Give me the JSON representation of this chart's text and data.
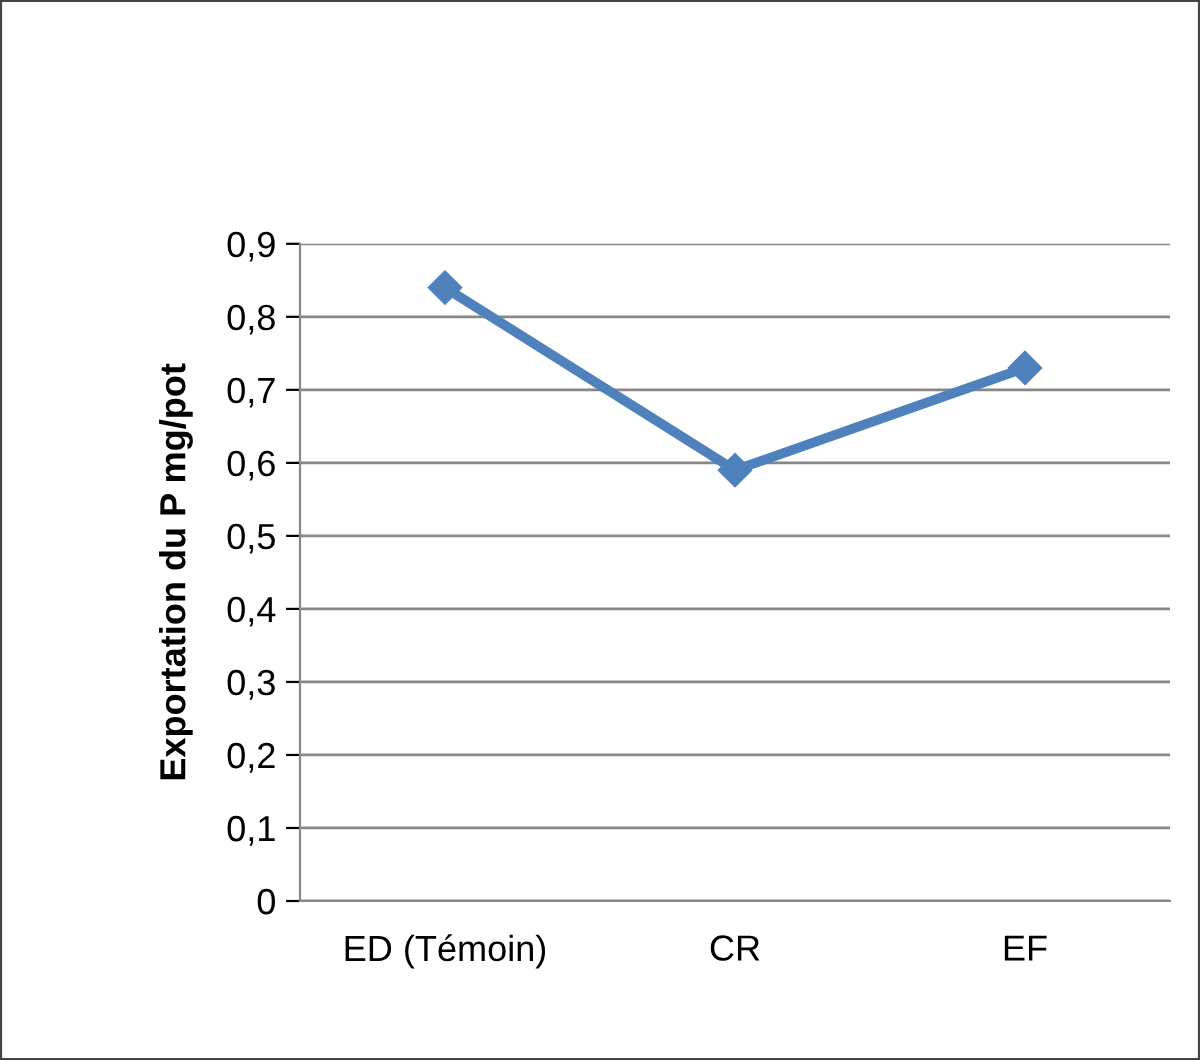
{
  "chart_data": {
    "type": "line",
    "ylabel": "Exportation du P mg/pot",
    "categories": [
      "ED (Témoin)",
      "CR",
      "EF"
    ],
    "series": [
      {
        "color": "#4f81bd",
        "values": [
          0.84,
          0.59,
          0.73
        ]
      }
    ],
    "ylim": [
      0,
      0.9
    ],
    "yticks": [
      0,
      {
        "value": 0.1,
        "label": "0,1"
      },
      {
        "value": 0.2,
        "label": "0,2"
      },
      {
        "value": 0.3,
        "label": "0,3"
      },
      {
        "value": 0.4,
        "label": "0,4"
      },
      {
        "value": 0.5,
        "label": "0,5"
      },
      {
        "value": 0.6,
        "label": "0,6"
      },
      {
        "value": 0.7,
        "label": "0,7"
      },
      {
        "value": 0.8,
        "label": "0,8"
      },
      {
        "value": 0.9,
        "label": "0,9"
      }
    ],
    "grid": "y",
    "marker": "diamond",
    "line_style": "solid"
  }
}
